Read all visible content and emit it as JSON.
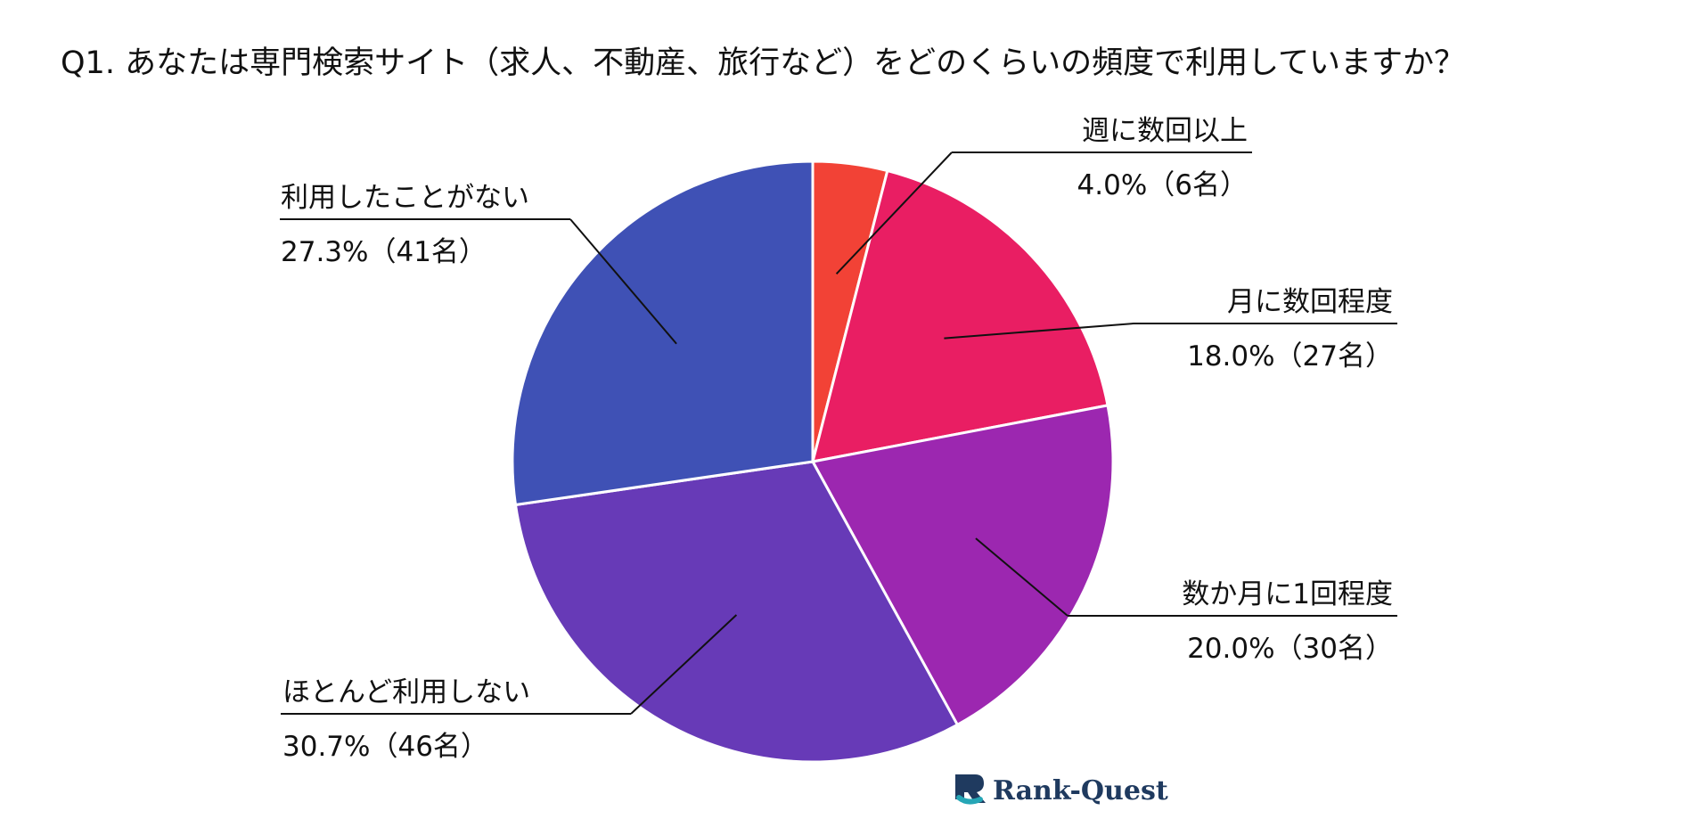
{
  "chart_data": {
    "type": "pie",
    "title": "Q1. あなたは専門検索サイト（求人、不動産、旅行など）をどのくらいの頻度で利用していますか？",
    "slices": [
      {
        "label": "週に数回以上",
        "percent_label": "4.0%（6名）",
        "value": 4.0,
        "count": 6,
        "color": "#f24236"
      },
      {
        "label": "月に数回程度",
        "percent_label": "18.0%（27名）",
        "value": 18.0,
        "count": 27,
        "color": "#e91e63"
      },
      {
        "label": "数か月に1回程度",
        "percent_label": "20.0%（30名）",
        "value": 20.0,
        "count": 30,
        "color": "#9c27b0"
      },
      {
        "label": "ほとんど利用しない",
        "percent_label": "30.7%（46名）",
        "value": 30.7,
        "count": 46,
        "color": "#673ab7"
      },
      {
        "label": "利用したことがない",
        "percent_label": "27.3%（41名）",
        "value": 27.3,
        "count": 41,
        "color": "#3f51b5"
      }
    ],
    "start_angle": "12 o'clock",
    "direction": "clockwise",
    "legend": "none"
  },
  "logo": {
    "part1": "Rank-",
    "part2": "Quest",
    "color_primary": "#1f3a5f",
    "color_accent": "#26a6b6"
  }
}
